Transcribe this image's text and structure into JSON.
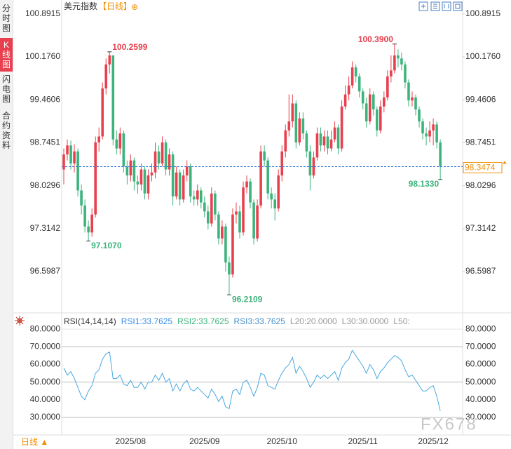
{
  "sidebar": [
    "分时图",
    "K线图",
    "闪电图",
    "合约资料"
  ],
  "header": {
    "title": "美元指数",
    "period": "【日线】",
    "add": "⊕"
  },
  "footer": {
    "period": "日线 ▲"
  },
  "watermark": "FX678",
  "chart_data": [
    {
      "type": "candlestick",
      "categories": [
        null,
        null,
        null,
        null,
        null,
        null,
        null,
        null,
        null,
        null,
        null,
        null,
        null,
        null,
        null,
        null,
        null,
        null,
        null,
        "2025/08",
        null,
        null,
        null,
        null,
        null,
        null,
        null,
        null,
        null,
        null,
        null,
        null,
        null,
        null,
        null,
        null,
        null,
        null,
        null,
        null,
        "2025/09",
        null,
        null,
        null,
        null,
        null,
        null,
        null,
        null,
        null,
        null,
        null,
        null,
        null,
        null,
        null,
        null,
        null,
        null,
        null,
        null,
        null,
        "2025/10",
        null,
        null,
        null,
        null,
        null,
        null,
        null,
        null,
        null,
        null,
        null,
        null,
        null,
        null,
        null,
        null,
        null,
        null,
        null,
        null,
        null,
        null,
        "2025/11",
        null,
        null,
        null,
        null,
        null,
        null,
        null,
        null,
        null,
        null,
        null,
        null,
        null,
        null,
        null,
        null,
        null,
        null,
        null,
        "2025/12",
        null,
        null
      ],
      "open": [
        98.3,
        98.55,
        98.7,
        98.4,
        98.6,
        97.95,
        97.7,
        97.35,
        97.25,
        97.55,
        98.75,
        98.85,
        99.65,
        100.05,
        100.2,
        98.8,
        98.65,
        98.9,
        98.35,
        98.2,
        98.45,
        98.1,
        98.05,
        98.3,
        97.9,
        98.2,
        98.25,
        98.6,
        98.4,
        98.75,
        98.3,
        98.55,
        97.85,
        98.25,
        97.8,
        98.2,
        98.35,
        97.85,
        97.8,
        97.95,
        97.75,
        97.6,
        97.4,
        97.9,
        97.55,
        97.15,
        97.35,
        96.75,
        96.55,
        97.55,
        97.6,
        97.25,
        98.0,
        98.1,
        97.75,
        97.15,
        97.7,
        98.6,
        98.45,
        97.9,
        97.8,
        97.65,
        98.2,
        98.6,
        98.95,
        99.1,
        99.4,
        98.75,
        99.15,
        98.9,
        98.6,
        98.2,
        98.5,
        98.9,
        98.7,
        98.85,
        98.65,
        98.8,
        99.0,
        98.65,
        99.35,
        99.55,
        99.7,
        100.0,
        99.85,
        99.6,
        99.4,
        99.1,
        99.55,
        99.3,
        98.95,
        99.35,
        99.5,
        99.85,
        99.95,
        100.2,
        100.15,
        100.05,
        99.75,
        99.45,
        99.5,
        99.3,
        99.1,
        98.9,
        98.85,
        98.95,
        99.05,
        98.75
      ],
      "high": [
        98.65,
        98.8,
        98.78,
        98.72,
        98.65,
        98.05,
        97.8,
        97.45,
        97.65,
        98.85,
        99.0,
        99.75,
        100.15,
        100.2599,
        100.2,
        98.95,
        99.0,
        98.95,
        98.45,
        98.55,
        98.5,
        98.2,
        98.4,
        98.35,
        98.3,
        98.4,
        98.75,
        98.7,
        98.85,
        98.8,
        98.65,
        98.6,
        98.35,
        98.3,
        98.3,
        98.45,
        98.4,
        97.95,
        98.05,
        98.0,
        97.85,
        97.7,
        98.0,
        97.95,
        97.6,
        97.45,
        97.4,
        96.85,
        97.65,
        97.75,
        97.7,
        98.1,
        98.2,
        98.15,
        97.8,
        97.8,
        98.7,
        98.7,
        98.5,
        98.0,
        97.9,
        98.3,
        98.7,
        99.05,
        99.55,
        99.55,
        99.45,
        99.25,
        99.25,
        98.95,
        98.7,
        98.6,
        99.0,
        99.0,
        98.95,
        98.95,
        98.95,
        99.1,
        99.05,
        99.45,
        99.7,
        99.85,
        100.1,
        100.05,
        99.9,
        99.65,
        99.5,
        99.65,
        99.6,
        99.35,
        99.45,
        99.6,
        99.95,
        100.2,
        100.39,
        100.3,
        100.25,
        100.1,
        99.8,
        99.6,
        99.55,
        99.35,
        99.15,
        99.0,
        99.1,
        99.15,
        99.1,
        98.8
      ],
      "low": [
        98.05,
        98.45,
        98.3,
        98.25,
        97.85,
        97.55,
        97.25,
        97.107,
        97.18,
        97.5,
        98.6,
        98.8,
        99.55,
        99.9,
        98.7,
        98.55,
        98.55,
        98.25,
        98.05,
        98.1,
        97.95,
        97.9,
        97.95,
        97.8,
        97.8,
        98.1,
        98.15,
        98.3,
        98.35,
        98.2,
        98.2,
        97.7,
        97.8,
        97.7,
        97.75,
        98.1,
        97.75,
        97.7,
        97.7,
        97.65,
        97.5,
        97.3,
        97.35,
        97.45,
        97.05,
        97.05,
        96.6,
        96.2109,
        96.5,
        97.4,
        97.15,
        97.2,
        97.9,
        97.65,
        97.05,
        97.1,
        97.65,
        98.35,
        97.8,
        97.65,
        97.45,
        97.6,
        98.1,
        98.5,
        98.85,
        99.0,
        98.65,
        98.7,
        98.8,
        98.5,
        97.95,
        98.15,
        98.45,
        98.6,
        98.6,
        98.55,
        98.6,
        98.75,
        98.55,
        98.6,
        99.3,
        99.45,
        99.65,
        99.75,
        99.5,
        99.3,
        99.0,
        99.05,
        99.2,
        98.85,
        98.9,
        99.25,
        99.45,
        99.75,
        99.9,
        100.0,
        99.95,
        99.65,
        99.35,
        99.35,
        99.2,
        99.0,
        98.8,
        98.7,
        98.75,
        98.7,
        98.65,
        98.133
      ],
      "close": [
        98.55,
        98.7,
        98.4,
        98.6,
        97.95,
        97.7,
        97.35,
        97.25,
        97.55,
        98.75,
        98.85,
        99.65,
        100.05,
        100.2,
        98.8,
        98.65,
        98.9,
        98.35,
        98.2,
        98.45,
        98.1,
        98.05,
        98.3,
        97.9,
        98.2,
        98.25,
        98.6,
        98.4,
        98.75,
        98.3,
        98.55,
        97.85,
        98.25,
        97.8,
        98.2,
        98.35,
        97.85,
        97.8,
        97.95,
        97.75,
        97.6,
        97.4,
        97.9,
        97.55,
        97.15,
        97.35,
        96.75,
        96.55,
        97.55,
        97.6,
        97.25,
        98.0,
        98.1,
        97.75,
        97.15,
        97.7,
        98.6,
        98.45,
        97.9,
        97.8,
        97.65,
        98.2,
        98.6,
        98.95,
        99.1,
        99.4,
        98.75,
        99.15,
        98.9,
        98.6,
        98.2,
        98.5,
        98.9,
        98.7,
        98.85,
        98.65,
        98.8,
        99.0,
        98.65,
        99.35,
        99.55,
        99.7,
        100.0,
        99.85,
        99.6,
        99.4,
        99.1,
        99.55,
        99.3,
        98.95,
        99.35,
        99.5,
        99.85,
        99.95,
        100.2,
        100.15,
        100.05,
        99.75,
        99.45,
        99.5,
        99.3,
        99.1,
        98.9,
        98.85,
        98.95,
        99.05,
        98.75,
        98.3474
      ],
      "ylim": [
        95.98,
        101.03
      ],
      "yticks": [
        100.8915,
        {
          "value": 100.176,
          "label": "100.1760"
        },
        99.4606,
        98.7451,
        98.0296,
        97.3142,
        96.5987
      ],
      "up_color": "#e8404e",
      "down_color": "#3cb47c",
      "last_price_color": "#f0900a",
      "extremes": [
        {
          "label": "100.2599",
          "value": 100.2599
        },
        {
          "label": "97.1070",
          "value": 97.107
        },
        {
          "label": "96.2109",
          "value": 96.2109
        },
        {
          "label": "100.3900",
          "value": 100.39
        },
        {
          "label": "98.1330",
          "value": 98.133
        }
      ]
    },
    {
      "type": "line",
      "legend": [
        {
          "text": "RSI(14,14,14)",
          "color": "#333333"
        },
        {
          "text": "RSI1:33.7625",
          "color": "#3a8ee6"
        },
        {
          "text": "RSI2:33.7625",
          "color": "#3cb47c"
        },
        {
          "text": "RSI3:33.7625",
          "color": "#4a90c8"
        },
        {
          "text": "L20:20.0000",
          "color": "#999999"
        },
        {
          "text": "L30:30.0000",
          "color": "#999999"
        },
        {
          "text": "L50:",
          "color": "#999999"
        }
      ],
      "values": [
        58,
        54,
        56,
        52,
        47,
        42,
        40,
        45,
        48,
        55,
        57,
        63,
        66,
        67,
        52,
        52,
        54,
        49,
        48,
        51,
        47,
        47,
        50,
        46,
        50,
        50,
        54,
        51,
        55,
        50,
        52,
        45,
        49,
        45,
        49,
        51,
        46,
        45,
        47,
        45,
        43,
        41,
        46,
        43,
        39,
        42,
        36,
        35,
        45,
        46,
        43,
        50,
        51,
        47,
        42,
        47,
        55,
        54,
        48,
        47,
        46,
        51,
        55,
        58,
        60,
        64,
        55,
        59,
        56,
        52,
        47,
        50,
        54,
        52,
        54,
        52,
        54,
        56,
        51,
        58,
        61,
        63,
        68,
        65,
        62,
        59,
        55,
        60,
        57,
        52,
        56,
        58,
        61,
        63,
        65,
        64,
        62,
        57,
        53,
        54,
        51,
        48,
        45,
        45,
        47,
        48,
        42,
        33.7625
      ],
      "color": "#4aa8e0",
      "ylim": [
        20.1,
        84.4
      ],
      "yticks": [
        {
          "value": 80,
          "label": "80.0000"
        },
        {
          "value": 70,
          "label": "70.0000"
        },
        {
          "value": 60,
          "label": "60.0000"
        },
        {
          "value": 50,
          "label": "50.0000"
        },
        {
          "value": 40,
          "label": "40.0000"
        },
        {
          "value": 30,
          "label": "30.0000"
        }
      ],
      "gridlines": [
        80,
        70,
        50,
        30
      ]
    }
  ]
}
